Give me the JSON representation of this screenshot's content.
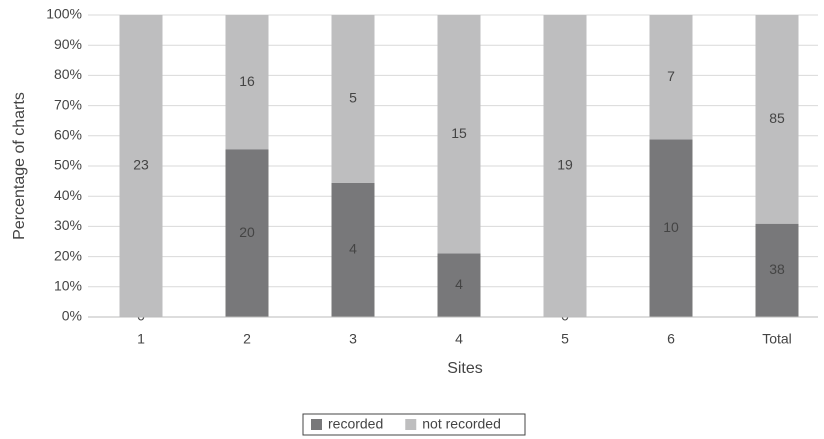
{
  "chart_data": {
    "type": "bar",
    "stacking": "percent",
    "x_label": "Sites",
    "y_label": "Percentage of charts",
    "categories": [
      "1",
      "2",
      "3",
      "4",
      "5",
      "6",
      "Total"
    ],
    "series": [
      {
        "name": "recorded",
        "color": "#78787a",
        "values": [
          0,
          20,
          4,
          4,
          0,
          10,
          38
        ]
      },
      {
        "name": "not recorded",
        "color": "#bebebf",
        "values": [
          23,
          16,
          5,
          15,
          19,
          7,
          85
        ]
      }
    ],
    "ylim": [
      0,
      100
    ],
    "yticks": [
      {
        "value": 0,
        "label": "0%"
      },
      {
        "value": 10,
        "label": "10%"
      },
      {
        "value": 20,
        "label": "20%"
      },
      {
        "value": 30,
        "label": "30%"
      },
      {
        "value": 40,
        "label": "40%"
      },
      {
        "value": 50,
        "label": "50%"
      },
      {
        "value": 60,
        "label": "60%"
      },
      {
        "value": 70,
        "label": "70%"
      },
      {
        "value": 80,
        "label": "80%"
      },
      {
        "value": 90,
        "label": "90%"
      },
      {
        "value": 100,
        "label": "100%"
      }
    ],
    "grid": true,
    "legend": "bottom"
  }
}
